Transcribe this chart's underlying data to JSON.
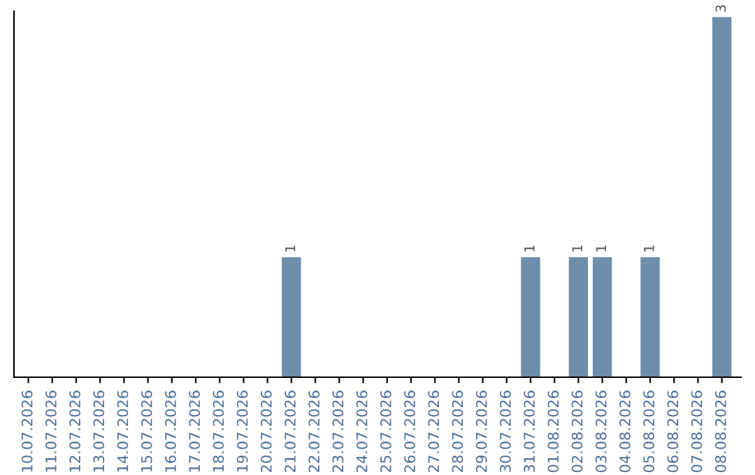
{
  "chart_data": {
    "type": "bar",
    "categories": [
      "10.07.2026",
      "11.07.2026",
      "12.07.2026",
      "13.07.2026",
      "14.07.2026",
      "15.07.2026",
      "16.07.2026",
      "17.07.2026",
      "18.07.2026",
      "19.07.2026",
      "20.07.2026",
      "21.07.2026",
      "22.07.2026",
      "23.07.2026",
      "24.07.2026",
      "25.07.2026",
      "26.07.2026",
      "27.07.2026",
      "28.07.2026",
      "29.07.2026",
      "30.07.2026",
      "31.07.2026",
      "01.08.2026",
      "02.08.2026",
      "03.08.2026",
      "04.08.2026",
      "05.08.2026",
      "06.08.2026",
      "07.08.2026",
      "08.08.2026"
    ],
    "values": [
      0,
      0,
      0,
      0,
      0,
      0,
      0,
      0,
      0,
      0,
      0,
      1,
      0,
      0,
      0,
      0,
      0,
      0,
      0,
      0,
      0,
      1,
      0,
      1,
      1,
      0,
      1,
      0,
      0,
      3
    ],
    "value_labels": [
      null,
      null,
      null,
      null,
      null,
      null,
      null,
      null,
      null,
      null,
      null,
      "1",
      null,
      null,
      null,
      null,
      null,
      null,
      null,
      null,
      null,
      "1",
      null,
      "1",
      "1",
      null,
      "1",
      null,
      null,
      "3"
    ],
    "color": "#6d8dab",
    "ylim": [
      0,
      3.05
    ],
    "tick_labels": "x",
    "grid": false,
    "legend": false
  }
}
